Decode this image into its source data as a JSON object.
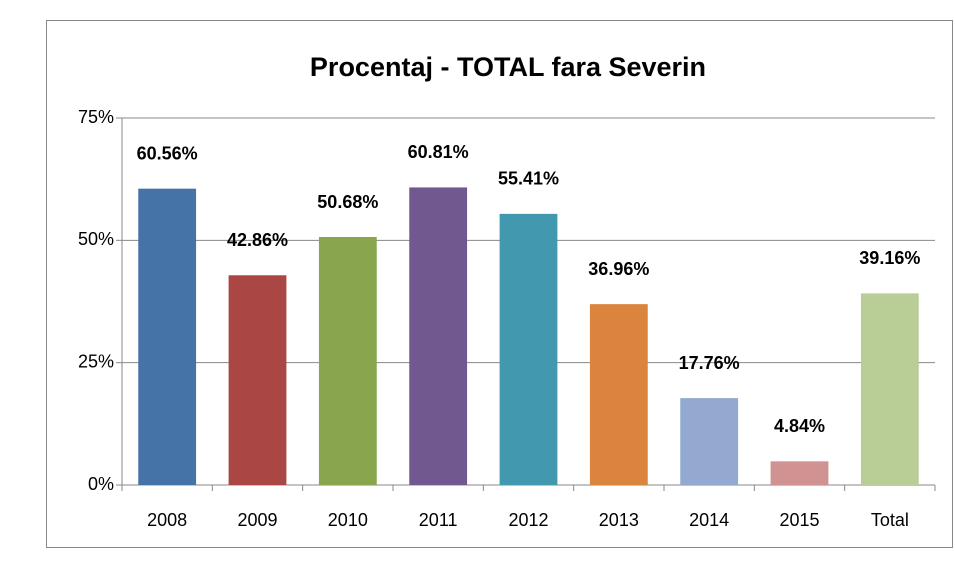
{
  "chart_data": {
    "type": "bar",
    "title": "Procentaj - TOTAL fara Severin",
    "categories": [
      "2008",
      "2009",
      "2010",
      "2011",
      "2012",
      "2013",
      "2014",
      "2015",
      "Total"
    ],
    "values": [
      60.56,
      42.86,
      50.68,
      60.81,
      55.41,
      36.96,
      17.76,
      4.84,
      39.16
    ],
    "value_labels": [
      "60.56%",
      "42.86%",
      "50.68%",
      "60.81%",
      "55.41%",
      "36.96%",
      "17.76%",
      "4.84%",
      "39.16%"
    ],
    "colors": [
      "#4572a7",
      "#aa4643",
      "#89a54e",
      "#71588f",
      "#4198af",
      "#db843d",
      "#93a9cf",
      "#d19392",
      "#b9cd96"
    ],
    "ylim": [
      0,
      75
    ],
    "yticks": [
      {
        "value": 0,
        "label": "0%"
      },
      {
        "value": 25,
        "label": "25%"
      },
      {
        "value": 50,
        "label": "50%"
      },
      {
        "value": 75,
        "label": "75%"
      }
    ],
    "grid": true
  }
}
